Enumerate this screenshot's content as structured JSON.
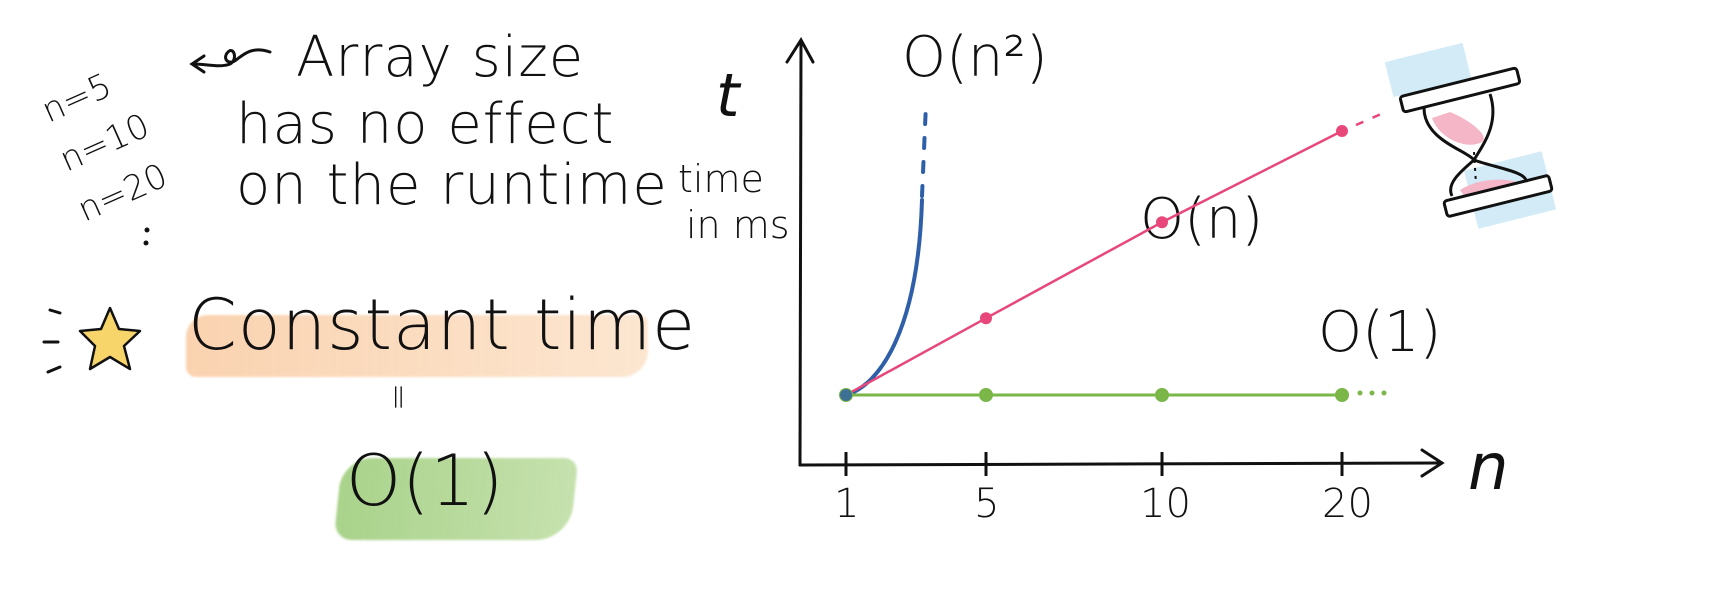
{
  "left_notes": {
    "n_values": [
      "n=5",
      "n=10",
      "n=20"
    ],
    "caption_lines": [
      "Array size",
      "has no effect",
      "on the runtime"
    ],
    "constant_time": "Constant time",
    "equals_sign": "=",
    "big_o": "O(1)"
  },
  "chart_data": {
    "type": "line",
    "axis_y_symbol": "t",
    "ylabel": "time in ms",
    "ylabel_lines": [
      "time",
      "in ms"
    ],
    "xlabel": "n",
    "x_ticks": [
      "1",
      "5",
      "10",
      "20"
    ],
    "series": [
      {
        "name": "O(n²)",
        "color": "#2f5fa8",
        "style": "curve-then-dashed",
        "points": [
          [
            1,
            1
          ],
          [
            2,
            2
          ],
          [
            3,
            5
          ]
        ]
      },
      {
        "name": "O(n)",
        "color": "#e8477a",
        "style": "line-then-dashed",
        "points": [
          [
            1,
            1
          ],
          [
            5,
            2.6
          ],
          [
            10,
            4.6
          ],
          [
            20,
            6.5
          ]
        ]
      },
      {
        "name": "O(1)",
        "color": "#7ab648",
        "style": "line-then-dotted",
        "points": [
          [
            1,
            1
          ],
          [
            5,
            1
          ],
          [
            10,
            1
          ],
          [
            20,
            1
          ]
        ]
      }
    ],
    "colors": {
      "axis": "#111111",
      "hourglass_pink": "#f2a7bd",
      "hourglass_blue": "#a9d7ee"
    }
  },
  "icons": [
    "star-icon",
    "curly-arrow-icon",
    "hourglass-icon"
  ]
}
